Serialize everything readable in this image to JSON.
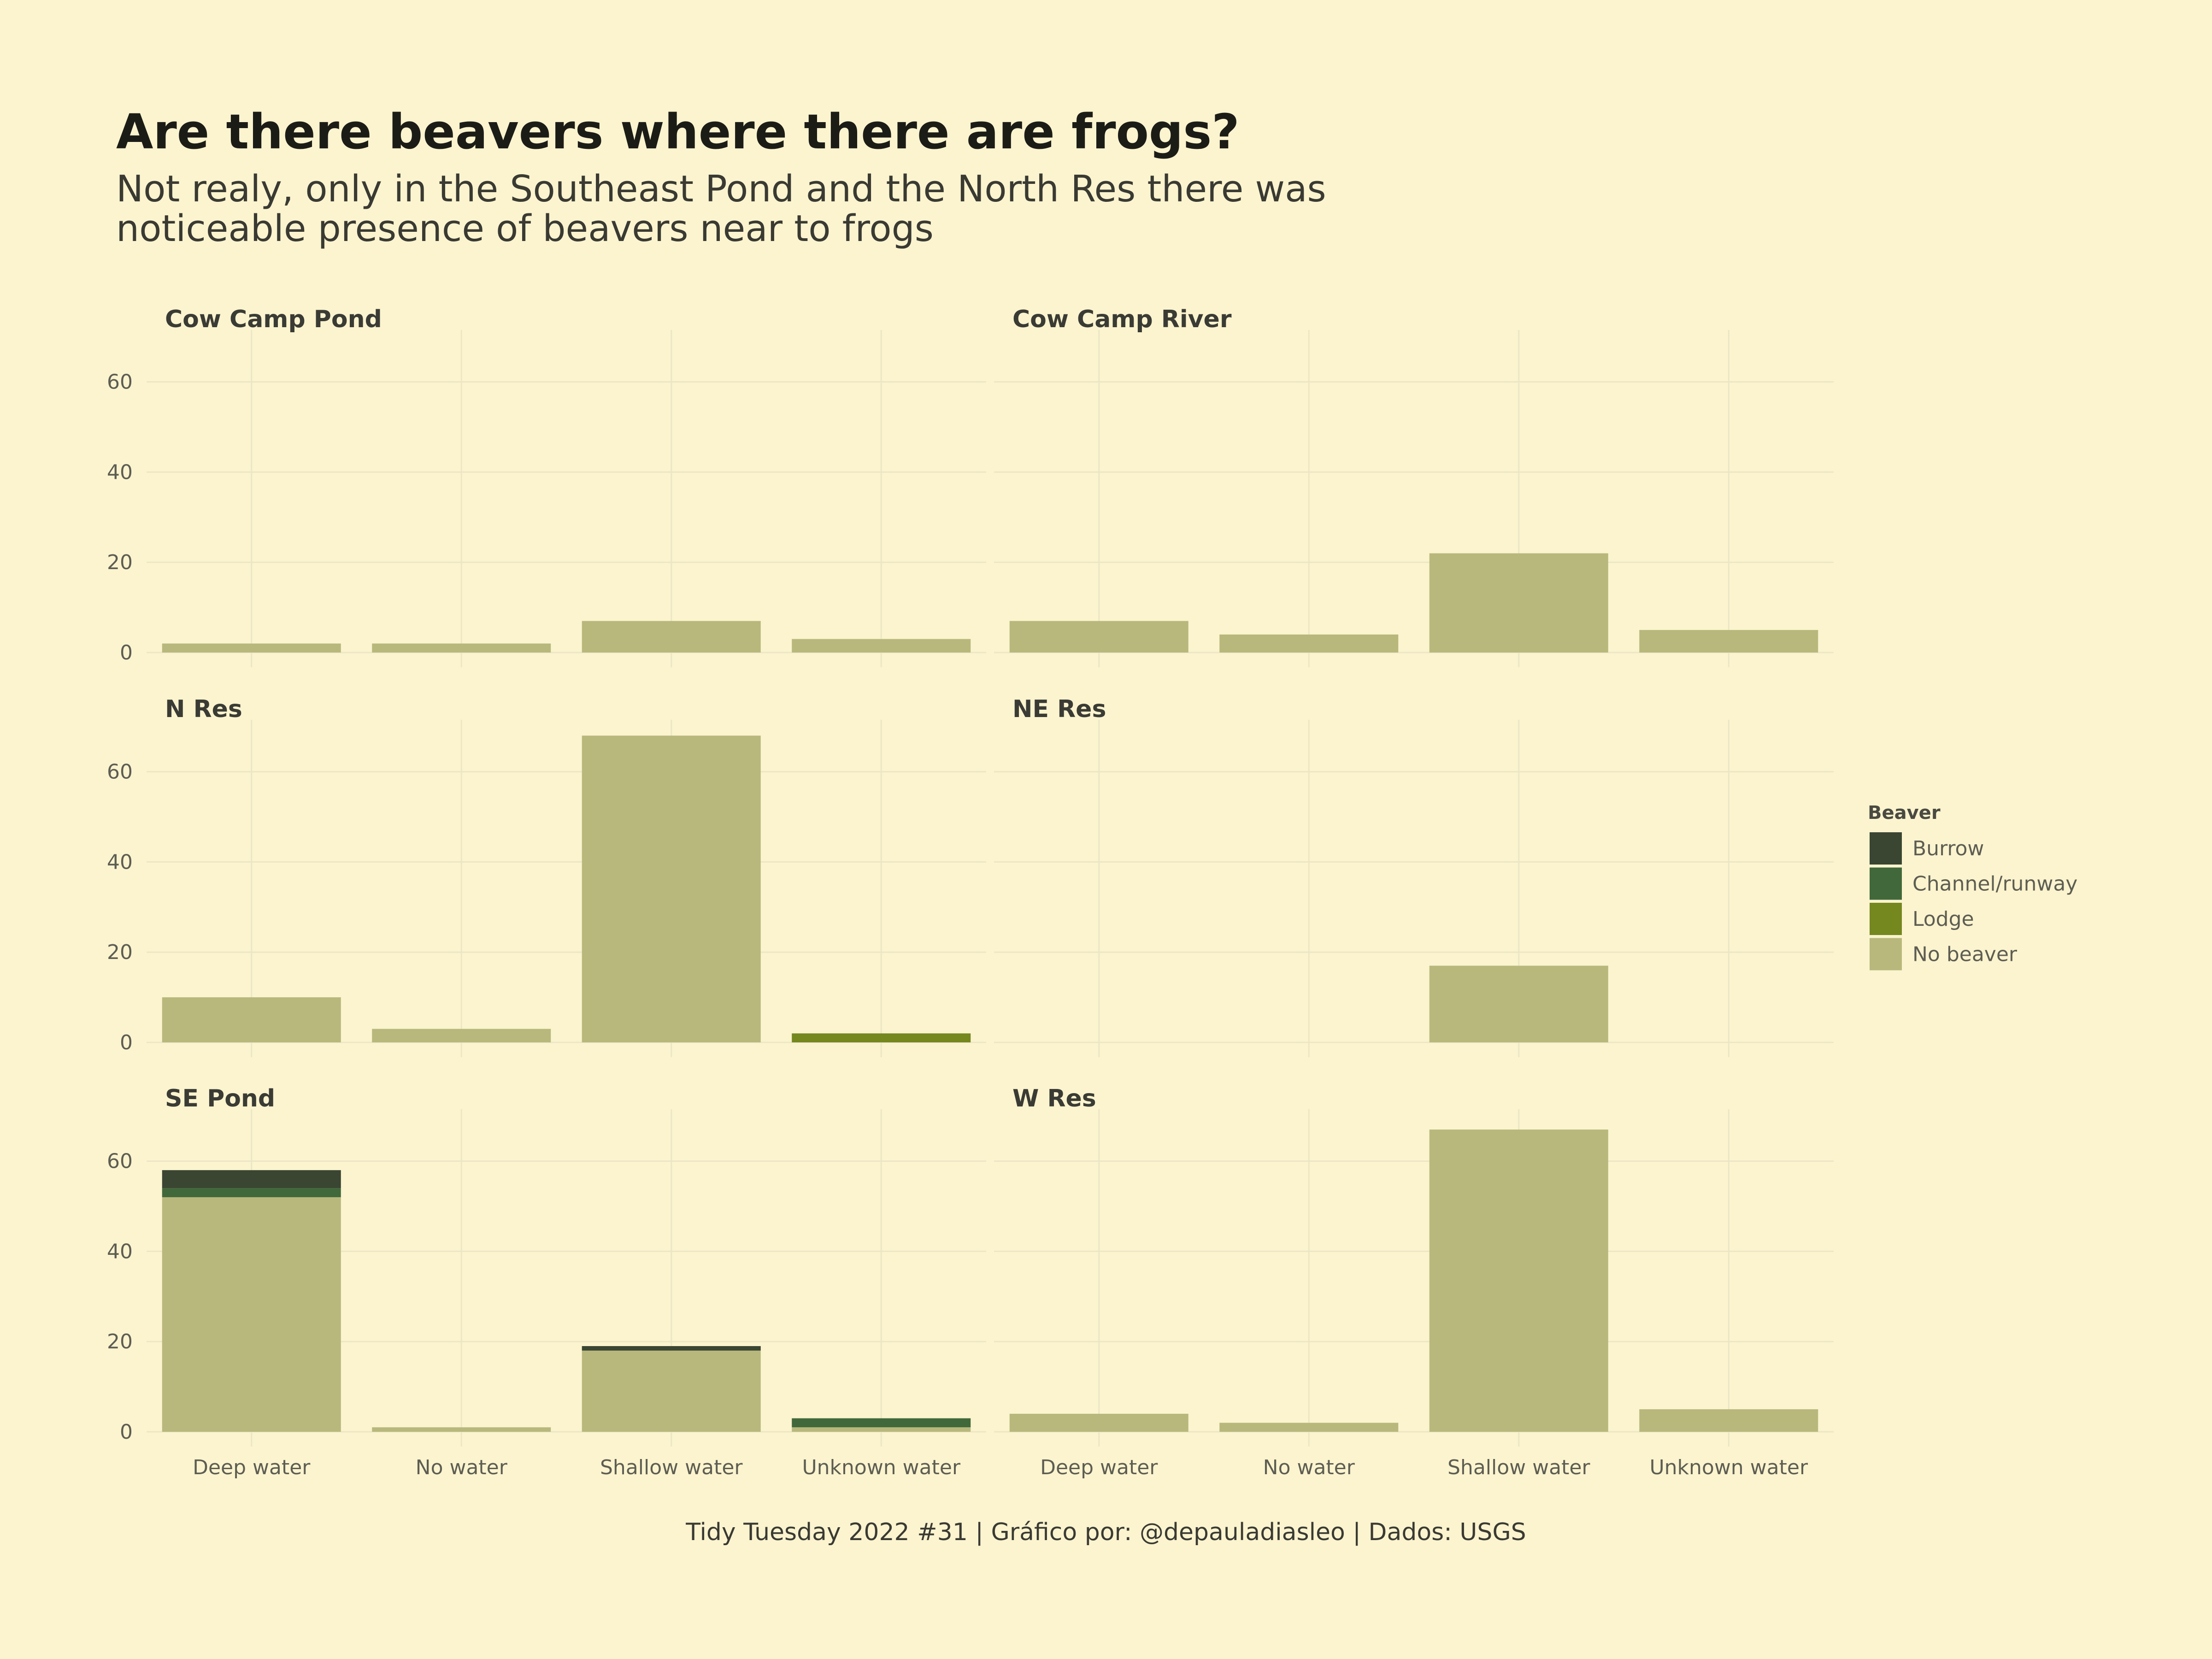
{
  "title": "Are there beavers where there are frogs?",
  "subtitle_lines": [
    "Not realy, only in the Southeast Pond and the North Res there was",
    "noticeable presence of beavers near to frogs"
  ],
  "caption": "Tidy Tuesday 2022 #31 | Gráfico por: @depauladiasleo | Dados: USGS",
  "colors": {
    "background": "#fbf4cf",
    "Burrow": "#3a4532",
    "Channel/runway": "#41683a",
    "Lodge": "#75871f",
    "No beaver": "#b9b87c",
    "grid": "#ece6c6"
  },
  "chart_data": {
    "type": "bar",
    "stacked": true,
    "faceted": true,
    "categories": [
      "Deep water",
      "No water",
      "Shallow water",
      "Unknown water"
    ],
    "yticks": [
      0,
      20,
      40,
      60
    ],
    "ylim": [
      0,
      70
    ],
    "grid": true,
    "legend": {
      "title": "Beaver",
      "position": "right",
      "entries": [
        "Burrow",
        "Channel/runway",
        "Lodge",
        "No beaver"
      ]
    },
    "stack_order": [
      "No beaver",
      "Lodge",
      "Channel/runway",
      "Burrow"
    ],
    "panels": [
      {
        "name": "Cow Camp Pond",
        "series": [
          {
            "name": "No beaver",
            "values": [
              2,
              2,
              7,
              3
            ]
          },
          {
            "name": "Lodge",
            "values": [
              0,
              0,
              0,
              0
            ]
          },
          {
            "name": "Channel/runway",
            "values": [
              0,
              0,
              0,
              0
            ]
          },
          {
            "name": "Burrow",
            "values": [
              0,
              0,
              0,
              0
            ]
          }
        ]
      },
      {
        "name": "Cow Camp River",
        "series": [
          {
            "name": "No beaver",
            "values": [
              7,
              4,
              22,
              5
            ]
          },
          {
            "name": "Lodge",
            "values": [
              0,
              0,
              0,
              0
            ]
          },
          {
            "name": "Channel/runway",
            "values": [
              0,
              0,
              0,
              0
            ]
          },
          {
            "name": "Burrow",
            "values": [
              0,
              0,
              0,
              0
            ]
          }
        ]
      },
      {
        "name": "N Res",
        "series": [
          {
            "name": "No beaver",
            "values": [
              10,
              3,
              68,
              0
            ]
          },
          {
            "name": "Lodge",
            "values": [
              0,
              0,
              0,
              2
            ]
          },
          {
            "name": "Channel/runway",
            "values": [
              0,
              0,
              0,
              0
            ]
          },
          {
            "name": "Burrow",
            "values": [
              0,
              0,
              0,
              0
            ]
          }
        ]
      },
      {
        "name": "NE Res",
        "series": [
          {
            "name": "No beaver",
            "values": [
              0,
              0,
              17,
              0
            ]
          },
          {
            "name": "Lodge",
            "values": [
              0,
              0,
              0,
              0
            ]
          },
          {
            "name": "Channel/runway",
            "values": [
              0,
              0,
              0,
              0
            ]
          },
          {
            "name": "Burrow",
            "values": [
              0,
              0,
              0,
              0
            ]
          }
        ]
      },
      {
        "name": "SE Pond",
        "series": [
          {
            "name": "No beaver",
            "values": [
              52,
              1,
              18,
              1
            ]
          },
          {
            "name": "Lodge",
            "values": [
              0,
              0,
              0,
              0
            ]
          },
          {
            "name": "Channel/runway",
            "values": [
              2,
              0,
              0,
              2
            ]
          },
          {
            "name": "Burrow",
            "values": [
              4,
              0,
              1,
              0
            ]
          }
        ]
      },
      {
        "name": "W Res",
        "series": [
          {
            "name": "No beaver",
            "values": [
              4,
              2,
              67,
              5
            ]
          },
          {
            "name": "Lodge",
            "values": [
              0,
              0,
              0,
              0
            ]
          },
          {
            "name": "Channel/runway",
            "values": [
              0,
              0,
              0,
              0
            ]
          },
          {
            "name": "Burrow",
            "values": [
              0,
              0,
              0,
              0
            ]
          }
        ]
      }
    ]
  }
}
